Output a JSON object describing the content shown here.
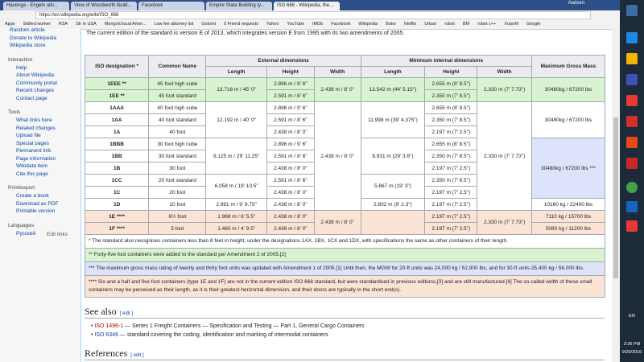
{
  "browser": {
    "tabs": [
      "Havenga - Engeln uitv...",
      "View of Woodworth Build...",
      "Facebook",
      "Empire State Building ty...",
      "ISO 668 - Wikipedia, the..."
    ],
    "user": "Aadsen",
    "url": "https://en.wikipedia.org/wiki/ISO_668",
    "bookmarks": [
      "Apps",
      "Skilled worker",
      "RSA",
      "Str in USA",
      "Mongolchuud Amer...",
      "Low fee attorney list",
      "Golomt",
      "0 Friend requests",
      "Yahoo",
      "YouTube",
      "IMDb",
      "Facebook",
      "Wikipedia",
      "Bolor",
      "Netflix",
      "Urban",
      "robot",
      "BM",
      "robot c++",
      "XopoM",
      "Google"
    ]
  },
  "sidebar": {
    "top": [
      "Random article",
      "Donate to Wikipedia",
      "Wikipedia store"
    ],
    "sections": [
      {
        "heading": "Interaction",
        "items": [
          "Help",
          "About Wikipedia",
          "Community portal",
          "Recent changes",
          "Contact page"
        ]
      },
      {
        "heading": "Tools",
        "items": [
          "What links here",
          "Related changes",
          "Upload file",
          "Special pages",
          "Permanent link",
          "Page information",
          "Wikidata item",
          "Cite this page"
        ]
      },
      {
        "heading": "Print/export",
        "items": [
          "Create a book",
          "Download as PDF",
          "Printable version"
        ]
      },
      {
        "heading": "Languages",
        "items": [
          "Русский"
        ]
      }
    ],
    "edit_links": "Edit links"
  },
  "article": {
    "intro": "The current edition of the standard is version E of 2013, which integrates version E from 1995 with its two amendments of 2005.",
    "table": {
      "header_top": [
        "ISO designation *",
        "Common Name",
        "External dimensions",
        "Minimum internal dimensions",
        "Maximum Gross Mass"
      ],
      "header_sub": [
        "Length",
        "Height",
        "Width",
        "Length",
        "Height",
        "Width"
      ],
      "rows": [
        [
          "1EEE **",
          "45 foot high cube",
          "13.716 m / 45' 0\"",
          "2.896 m / 9' 6\"",
          "2.438 m / 8' 0\"",
          "13.542 m (44' 5.15\")",
          "2.655 m (8' 8.5\")",
          "2.330 m (7' 7.73\")",
          "30480kg / 67200 lbs"
        ],
        [
          "1EE **",
          "45 foot standard",
          "2.591 m / 8' 6\"",
          "2.350 m (7' 8.5\")"
        ],
        [
          "1AAA",
          "40 foot high cube",
          "12.192 m / 40' 0\"",
          "2.896 m / 9' 6\"",
          "2.438 m / 8' 0\"",
          "11.998 m (39' 4.375\")",
          "2.655 m (8' 8.5\")",
          "2.330 m (7' 7.73\")",
          "30480kg / 67200 lbs"
        ],
        [
          "1AA",
          "40 foot standard",
          "2.591 m / 8' 6\"",
          "2.350 m (7' 8.5\")"
        ],
        [
          "1A",
          "40 foot",
          "2.438 m / 8' 0\"",
          "2.197 m (7' 2.5\")"
        ],
        [
          "1BBB",
          "30 foot high cube",
          "9.125 m / 29' 11.25\"",
          "2.896 m / 9' 6\"",
          "8.931 m (29' 3.6\")",
          "2.655 m (8' 8.5\")",
          "30480kg / 67200 lbs ***"
        ],
        [
          "1BB",
          "30 foot standard",
          "2.591 m / 8' 6\"",
          "2.350 m (7' 8.5\")"
        ],
        [
          "1B",
          "30 foot",
          "2.438 m / 8' 0\"",
          "2.197 m (7' 2.5\")"
        ],
        [
          "1CC",
          "20 foot standard",
          "6.058 m / 19' 10.5\"",
          "2.591 m / 8' 6\"",
          "5.867 m (19' 3\")",
          "2.350 m (7' 8.5\")"
        ],
        [
          "1C",
          "20 foot",
          "2.438 m / 8' 0\"",
          "2.197 m (7' 2.5\")"
        ],
        [
          "1D",
          "10 foot",
          "2.991 m / 9' 9.75\"",
          "2.438 m / 8' 0\"",
          "2.802 m (9' 2.3\")",
          "2.197 m (7' 2.5\")",
          "10160 kg / 22400 lbs"
        ],
        [
          "1E ****",
          "6½ foot",
          "1.968 m / 6' 5.5\"",
          "2.438 m / 8' 0\"",
          "2.438 m / 8' 0\"",
          "2.197 m (7' 2.5\")",
          "2.330 m (7' 7.73\")",
          "7110 kg / 15700 lbs"
        ],
        [
          "1F ****",
          "5 foot",
          "1.460 m / 4' 9.5\"",
          "2.438 m / 8' 0\"",
          "2.197 m (7' 2.5\")",
          "5080 kg / 11200 lbs"
        ]
      ],
      "notes": [
        "* The standard also recognises containers less than 8 feet in height, under the designations 1AX, 1BX, 1CX and 1DX, with specifications the same as other containers of their length.",
        "** Forty-five foot containers were added to the standard per Amendment 2 of 2005.[2]",
        "*** The maximum gross mass rating of twenty and thirty foot units was updated with Amendment 1 of 2005.[1] Until then, the MGW for 20-ft units was 24,000 kg / 52,900 lbs, and for 30-ft units 25,400 kg / 56,000 lbs.",
        "**** Six and a half and five foot containers (type 1E and 1F) are not in the current edition ISO 668 standard, but were standardised in previous editions,[3] and are still manufactured.[4] The so-called width of these small containers may be perceived as their length, as it is their greatest horizontal dimension, and their doors are typically in the short end(s)."
      ]
    },
    "see_also": {
      "heading": "See also",
      "edit": "[ edit ]",
      "items": [
        {
          "link": "ISO 1496-1",
          "text": " — Series 1 Freight Containers — Specification and Testing — Part 1, General Cargo Containers"
        },
        {
          "link": "ISO 6346",
          "text": " — standard covering the coding, identification and marking of intermodal containers"
        }
      ]
    },
    "references": {
      "heading": "References",
      "edit": "[ edit ]"
    }
  },
  "taskbar": {
    "lang": "EN",
    "time": "3:36 PM",
    "date": "9/29/2016"
  }
}
